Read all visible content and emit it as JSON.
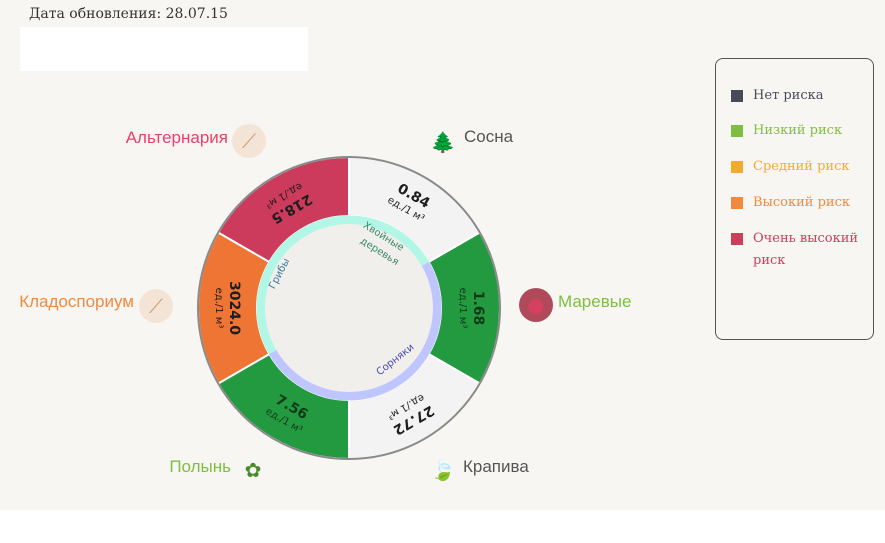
{
  "header": {
    "update_date": "Дата обновления: 28.07.15"
  },
  "legend": {
    "items": [
      {
        "label": "Нет риска",
        "color": "#474a59"
      },
      {
        "label": "Низкий риск",
        "color": "#7ebf41"
      },
      {
        "label": "Средний риск",
        "color": "#f3ab2f"
      },
      {
        "label": "Высокий риск",
        "color": "#f08a3e"
      },
      {
        "label": "Очень высокий риск",
        "color": "#c9405a"
      }
    ]
  },
  "groups": {
    "conifers": "Хвойные деревья",
    "fungi": "Грибы",
    "weeds": "Сорняки"
  },
  "plants": [
    {
      "name": "Сосна",
      "value": "0.84",
      "unit": "ед./1 м³",
      "risk": "none",
      "label_color": "#555555",
      "fill": "#f3f3f3"
    },
    {
      "name": "Маревые",
      "value": "1.68",
      "unit": "ед./1 м³",
      "risk": "low",
      "label_color": "#7ebf41",
      "fill": "#239a3f"
    },
    {
      "name": "Крапива",
      "value": "27.72",
      "unit": "ед./1 м³",
      "risk": "none",
      "label_color": "#555555",
      "fill": "#f3f3f3"
    },
    {
      "name": "Полынь",
      "value": "7.56",
      "unit": "ед./1 м³",
      "risk": "low",
      "label_color": "#7ebf41",
      "fill": "#239a3f"
    },
    {
      "name": "Кладоспориум",
      "value": "3024.0",
      "unit": "ед./1 м³",
      "risk": "high",
      "label_color": "#f08a3e",
      "fill": "#ef7535"
    },
    {
      "name": "Альтернария",
      "value": "218.5",
      "unit": "ед./1 м³",
      "risk": "very_high",
      "label_color": "#e8416a",
      "fill": "#cc3a5c"
    }
  ],
  "colors": {
    "conifers_ring": "#b2f7e6",
    "weeds_ring": "#bfc6ff",
    "conifers_text": "#3b8a6a",
    "fungi_text": "#3b7a9a",
    "weeds_text": "#4b4aa8"
  },
  "icons": [
    "pine-branch-icon",
    "goosefoot-icon",
    "nettle-leaf-icon",
    "wormwood-icon",
    "mold-spores-icon",
    "mold-spores-icon"
  ]
}
